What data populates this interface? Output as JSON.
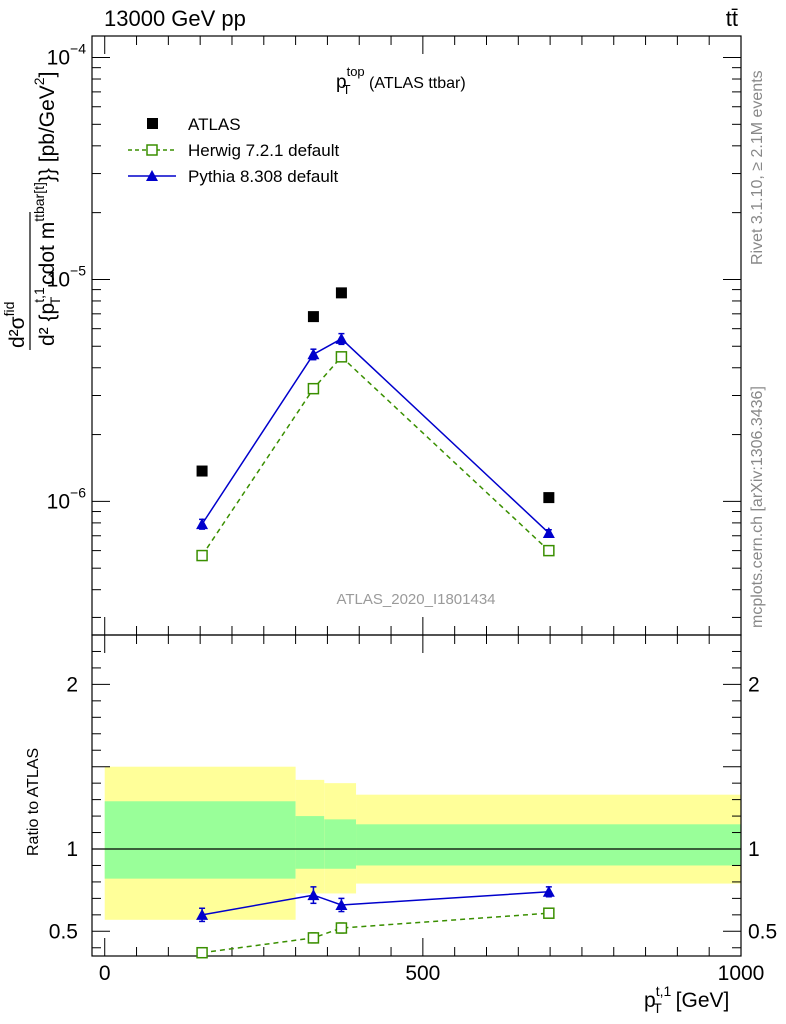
{
  "header": {
    "left_text": "13000 GeV pp",
    "right_text": "tt̄"
  },
  "side_labels": {
    "rivet": "Rivet 3.1.10, ≥ 2.1M events",
    "mcplots": "mcplots.cern.ch [arXiv:1306.3436]"
  },
  "chart_data": [
    {
      "type": "scatter",
      "panel": "main",
      "title": {
        "base": "p",
        "sup": "top",
        "sub": "T",
        "suffix": " (ATLAS ttbar)"
      },
      "ylabel_text": "d²σ^fid / d² {p_T^t,1 cdot m^ttbar[t]}} [pb/GeV²]",
      "ylabel": {
        "numerator": "d²σ",
        "numerator_sup": "fid",
        "denominator_part1": "d² {p",
        "denominator_sup": "t,1",
        "denominator_sub": "T",
        "denominator_part2": " cdot m",
        "denominator_sup2": "ttbar[t]",
        "denominator_part3": "}} [pb/GeV",
        "denominator_sup3": "2",
        "denominator_part4": "]"
      },
      "yscale": "log",
      "ylim": [
        2.5e-07,
        0.000125
      ],
      "xlim": [
        -20,
        1000
      ],
      "yticks": [
        {
          "base": "10",
          "exp": "−6",
          "value": 1e-06
        },
        {
          "base": "10",
          "exp": "−5",
          "value": 1e-05
        },
        {
          "base": "10",
          "exp": "−4",
          "value": 0.0001
        }
      ],
      "watermark": "ATLAS_2020_I1801434",
      "legend_position": "top-left",
      "series": [
        {
          "name": "ATLAS",
          "color": "#000000",
          "marker": "filled-square",
          "line": "none",
          "points": [
            {
              "x": 153,
              "y": 1.37e-06
            },
            {
              "x": 328,
              "y": 6.8e-06
            },
            {
              "x": 372,
              "y": 8.7e-06
            },
            {
              "x": 698,
              "y": 1.04e-06
            }
          ]
        },
        {
          "name": "Herwig 7.2.1 default",
          "color": "#3a8f00",
          "marker": "open-square",
          "line": "dashed",
          "points": [
            {
              "x": 153,
              "y": 5.7e-07,
              "err": 2e-08
            },
            {
              "x": 328,
              "y": 3.22e-06,
              "err": 1.2e-07
            },
            {
              "x": 372,
              "y": 4.48e-06,
              "err": 1.5e-07
            },
            {
              "x": 698,
              "y": 6e-07,
              "err": 2e-08
            }
          ]
        },
        {
          "name": "Pythia 8.308 default",
          "color": "#0000cc",
          "marker": "filled-triangle",
          "line": "solid",
          "points": [
            {
              "x": 153,
              "y": 7.9e-07,
              "err": 4e-08
            },
            {
              "x": 328,
              "y": 4.6e-06,
              "err": 2.5e-07
            },
            {
              "x": 372,
              "y": 5.4e-06,
              "err": 3e-07
            },
            {
              "x": 698,
              "y": 7.2e-07,
              "err": 2.5e-08
            }
          ]
        }
      ]
    },
    {
      "type": "scatter",
      "panel": "ratio",
      "ylabel": "Ratio to ATLAS",
      "ylim": [
        0.35,
        2.3
      ],
      "xlim": [
        -20,
        1000
      ],
      "yticks": [
        {
          "label": "0.5",
          "value": 0.5
        },
        {
          "label": "1",
          "value": 1
        },
        {
          "label": "2",
          "value": 2
        }
      ],
      "xticks": [
        {
          "label": "0",
          "value": 0
        },
        {
          "label": "500",
          "value": 500
        },
        {
          "label": "1000",
          "value": 1000
        }
      ],
      "xlabel": {
        "base": "p",
        "sup": "t,1",
        "sub": "T",
        "suffix": " [GeV]"
      },
      "reference_line": 1,
      "bands": {
        "inner_color": "#99ff99",
        "outer_color": "#ffff99",
        "bins": [
          {
            "x0": 0,
            "x1": 300,
            "inner": [
              0.82,
              1.29
            ],
            "outer": [
              0.57,
              1.5
            ]
          },
          {
            "x0": 300,
            "x1": 345,
            "inner": [
              0.88,
              1.2
            ],
            "outer": [
              0.73,
              1.42
            ]
          },
          {
            "x0": 345,
            "x1": 395,
            "inner": [
              0.88,
              1.18
            ],
            "outer": [
              0.73,
              1.4
            ]
          },
          {
            "x0": 395,
            "x1": 1000,
            "inner": [
              0.9,
              1.15
            ],
            "outer": [
              0.79,
              1.33
            ]
          }
        ]
      },
      "series": [
        {
          "name": "Herwig 7.2.1 default",
          "color": "#3a8f00",
          "marker": "open-square",
          "line": "dashed",
          "points": [
            {
              "x": 153,
              "y": 0.37,
              "err": 0.02
            },
            {
              "x": 328,
              "y": 0.46,
              "err": 0.03
            },
            {
              "x": 372,
              "y": 0.52,
              "err": 0.03
            },
            {
              "x": 698,
              "y": 0.61,
              "err": 0.02
            }
          ]
        },
        {
          "name": "Pythia 8.308 default",
          "color": "#0000cc",
          "marker": "filled-triangle",
          "line": "solid",
          "points": [
            {
              "x": 153,
              "y": 0.6,
              "err": 0.04
            },
            {
              "x": 328,
              "y": 0.72,
              "err": 0.05
            },
            {
              "x": 372,
              "y": 0.66,
              "err": 0.04
            },
            {
              "x": 698,
              "y": 0.74,
              "err": 0.03
            }
          ]
        }
      ]
    }
  ]
}
